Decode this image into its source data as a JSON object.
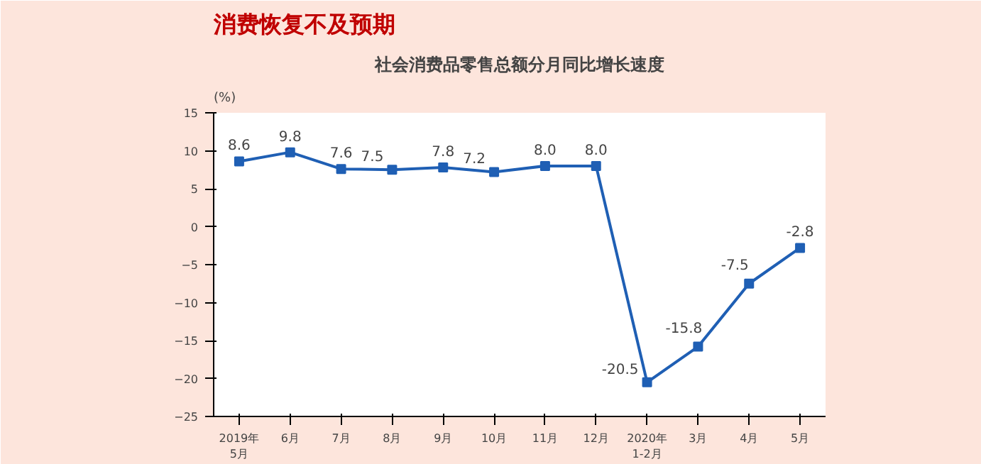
{
  "chart_data": {
    "type": "line",
    "title": "消费恢复不及预期",
    "subtitle": "社会消费品零售总额分月同比增长速度",
    "ylabel": "(%)",
    "categories": [
      "2019年\n5月",
      "6月",
      "7月",
      "8月",
      "9月",
      "10月",
      "11月",
      "12月",
      "2020年\n1-2月",
      "3月",
      "4月",
      "5月"
    ],
    "series": [
      {
        "color": "#1f5fb4",
        "values": [
          8.6,
          9.8,
          7.6,
          7.5,
          7.8,
          7.2,
          8.0,
          8.0,
          -20.5,
          -15.8,
          -7.5,
          -2.8
        ],
        "value_labels": [
          "8.6",
          "9.8",
          "7.6",
          "7.5",
          "7.8",
          "7.2",
          "8.0",
          "8.0",
          "-20.5",
          "-15.8",
          "-7.5",
          "-2.8"
        ]
      }
    ],
    "ylim": [
      -25,
      15
    ],
    "yticks": [
      -25,
      -20,
      -15,
      -10,
      -5,
      0,
      5,
      10,
      15
    ],
    "marker": "square",
    "grid": false
  }
}
